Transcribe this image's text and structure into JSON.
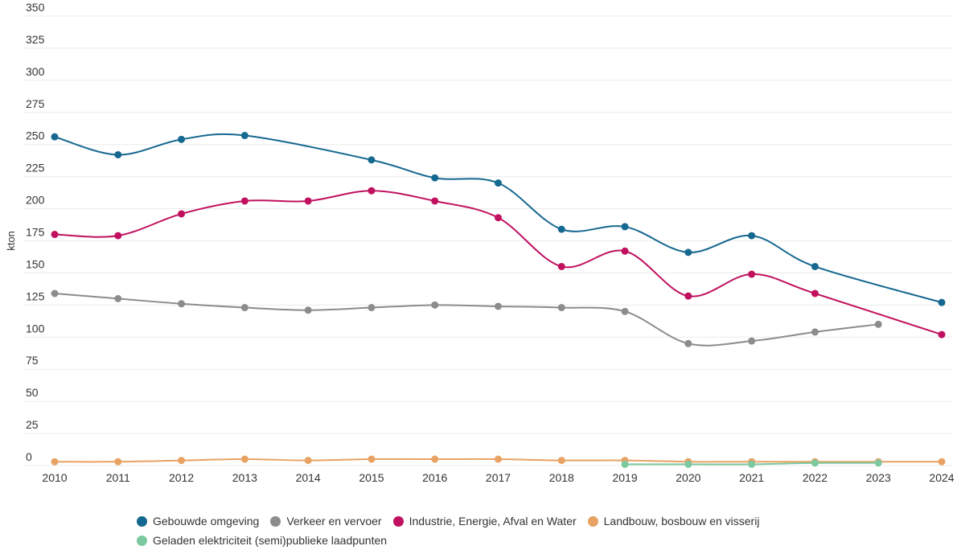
{
  "chart_data": {
    "type": "line",
    "title": "",
    "xlabel": "",
    "ylabel": "kton",
    "ylim": [
      0,
      350
    ],
    "yticks": [
      0,
      25,
      50,
      75,
      100,
      125,
      150,
      175,
      200,
      225,
      250,
      275,
      300,
      325,
      350
    ],
    "categories": [
      "2010",
      "2011",
      "2012",
      "2013",
      "2014",
      "2015",
      "2016",
      "2017",
      "2018",
      "2019",
      "2020",
      "2021",
      "2022",
      "2023",
      "2024"
    ],
    "grid": true,
    "legend_position": "bottom",
    "series": [
      {
        "name": "Gebouwde omgeving",
        "color": "#15688f",
        "values": [
          256,
          242,
          254,
          257,
          null,
          238,
          224,
          220,
          184,
          186,
          166,
          179,
          155,
          null,
          127
        ]
      },
      {
        "name": "Verkeer en vervoer",
        "color": "#8c8c8c",
        "values": [
          134,
          130,
          126,
          123,
          121,
          123,
          125,
          124,
          123,
          120,
          95,
          97,
          104,
          110,
          null
        ]
      },
      {
        "name": "Industrie, Energie, Afval en Water",
        "color": "#c0105f",
        "values": [
          180,
          179,
          196,
          206,
          206,
          214,
          206,
          193,
          155,
          167,
          132,
          149,
          134,
          null,
          102
        ]
      },
      {
        "name": "Landbouw, bosbouw en visserij",
        "color": "#e8a264",
        "values": [
          3,
          3,
          4,
          5,
          4,
          5,
          5,
          5,
          4,
          4,
          3,
          3,
          3,
          3,
          3
        ]
      },
      {
        "name": "Geladen elektriciteit (semi)publieke laadpunten",
        "color": "#7cc99f",
        "values": [
          null,
          null,
          null,
          null,
          null,
          null,
          null,
          null,
          null,
          1,
          1,
          1,
          2,
          2,
          null
        ]
      }
    ]
  }
}
